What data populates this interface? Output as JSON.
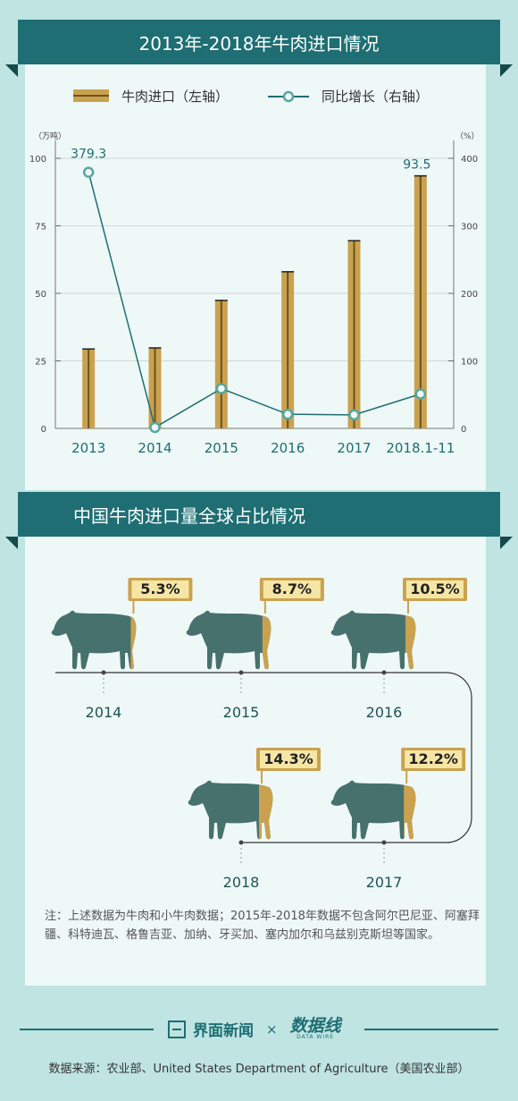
{
  "chart_data": [
    {
      "type": "bar",
      "title": "2013年-2018年牛肉进口情况",
      "categories": [
        "2013",
        "2014",
        "2015",
        "2016",
        "2017",
        "2018.1-11"
      ],
      "series": [
        {
          "name": "牛肉进口（左轴）",
          "type": "bar",
          "axis": "left",
          "values": [
            29.4,
            29.8,
            47.4,
            58,
            69.5,
            93.5
          ]
        },
        {
          "name": "同比增长（右轴）",
          "type": "line",
          "axis": "right",
          "values": [
            379.3,
            1.4,
            59,
            21,
            20,
            51
          ]
        }
      ],
      "left_axis": {
        "unit": "（万吨）",
        "ylim": [
          0,
          100
        ],
        "ticks": [
          "0",
          "25",
          "50",
          "75",
          "100"
        ]
      },
      "right_axis": {
        "unit": "（%）",
        "ylim": [
          0,
          400
        ],
        "ticks": [
          "0",
          "100",
          "200",
          "300",
          "400"
        ]
      },
      "data_labels": [
        "379.3",
        "93.5"
      ],
      "grid": true,
      "legend_position": "top"
    },
    {
      "type": "pictogram",
      "title": "中国牛肉进口量全球占比情况",
      "categories": [
        "2014",
        "2015",
        "2016",
        "2017",
        "2018"
      ],
      "values": [
        5.3,
        8.7,
        10.5,
        12.2,
        14.3
      ],
      "value_labels": [
        "5.3%",
        "8.7%",
        "10.5%",
        "12.2%",
        "14.3%"
      ]
    }
  ],
  "note": "注：上述数据为牛肉和小牛肉数据；2015年-2018年数据不包含阿尔巴尼亚、阿塞拜疆、科特迪瓦、格鲁吉亚、加纳、牙买加、塞内加尔和乌兹别克斯坦等国家。",
  "footer": {
    "brand1": "界面新闻",
    "times": "×",
    "brand2": "数据线",
    "brand2_sub": "DATA WIRE",
    "source": "数据来源：农业部、United States Department of Agriculture（美国农业部）"
  },
  "colors": {
    "teal": "#1e6e73",
    "bar": "#caa24f",
    "bar_edge": "#6b5320",
    "cow": "#47716d",
    "label_bg": "#f6e6a6",
    "page_bg": "#bfe4e2"
  }
}
